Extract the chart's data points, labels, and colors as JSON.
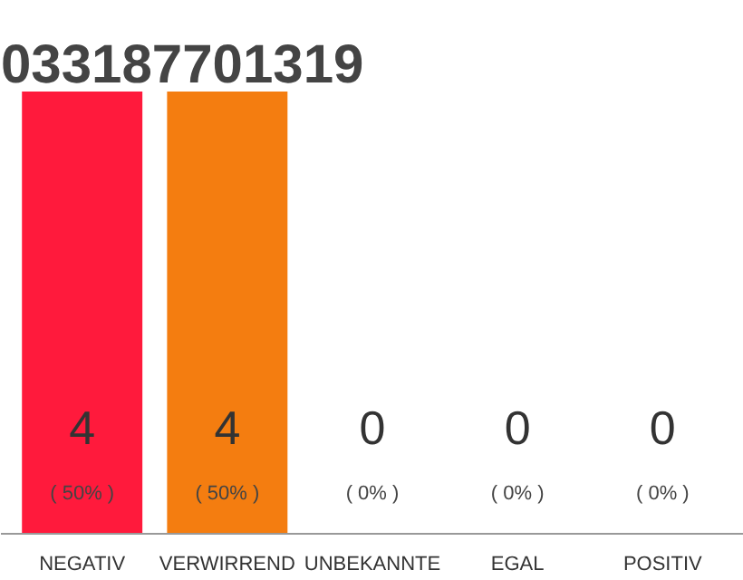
{
  "chart_data": {
    "type": "bar",
    "title": "033187701319",
    "categories": [
      "NEGATIV",
      "VERWIRREND",
      "UNBEKANNTE",
      "EGAL",
      "POSITIV"
    ],
    "values": [
      4,
      4,
      0,
      0,
      0
    ],
    "colors": [
      "#ff1a3c",
      "#f47d10",
      "#eeeeee",
      "#eeeeee",
      "#eeeeee"
    ],
    "value_labels": [
      "4\n( 50% )",
      "4\n( 50% )",
      "0\n( 0% )",
      "0\n( 0% )",
      "0\n( 0% )"
    ],
    "ylim": [
      0,
      4
    ],
    "tick_labels": "x",
    "grid": false
  }
}
